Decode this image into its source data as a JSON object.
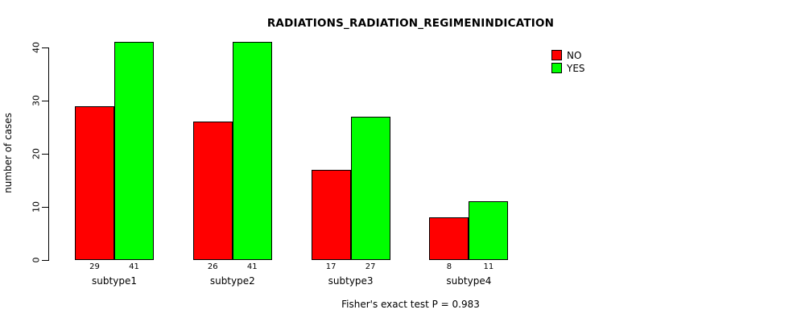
{
  "chart_data": {
    "type": "bar",
    "title": "RADIATIONS_RADIATION_REGIMENINDICATION",
    "ylabel": "number of cases",
    "xlabel": "",
    "categories": [
      "subtype1",
      "subtype2",
      "subtype3",
      "subtype4"
    ],
    "series": [
      {
        "name": "NO",
        "color": "#ff0000",
        "values": [
          29,
          26,
          17,
          8
        ]
      },
      {
        "name": "YES",
        "color": "#00ff00",
        "values": [
          41,
          41,
          27,
          11
        ]
      }
    ],
    "y_ticks": [
      0,
      10,
      20,
      30,
      40
    ],
    "ylim": [
      0,
      41
    ],
    "grid": false,
    "legend_position": "top-right",
    "bar_value_labels_shown": true,
    "footer": "Fisher's exact test P = 0.983"
  }
}
